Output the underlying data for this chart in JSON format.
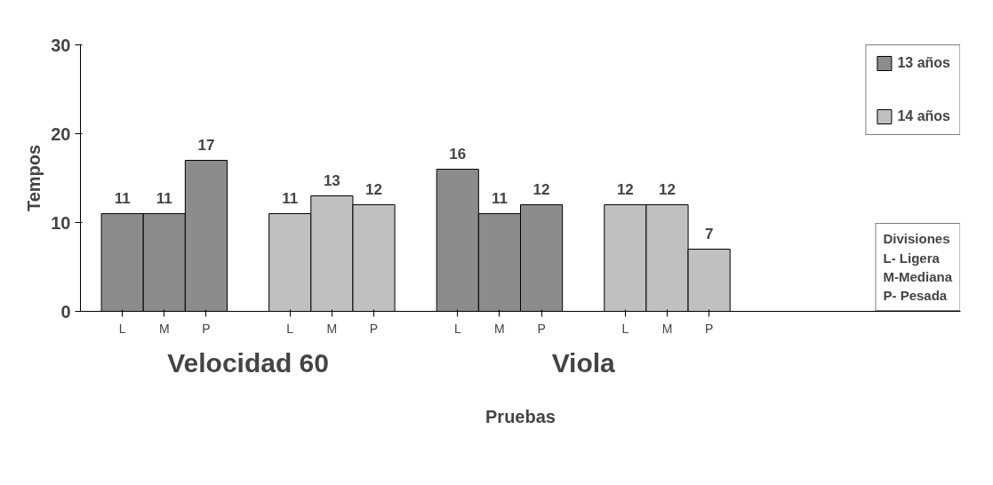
{
  "chart_data": {
    "type": "bar",
    "xlabel": "Pruebas",
    "ylabel": "Tempos",
    "categories": [
      "L",
      "M",
      "P",
      "L",
      "M",
      "P",
      "L",
      "M",
      "P",
      "L",
      "M",
      "P"
    ],
    "series": [
      {
        "name": "13 años",
        "color": "#8c8c8c",
        "values": [
          11,
          11,
          17,
          null,
          null,
          null,
          16,
          11,
          12,
          null,
          null,
          null
        ]
      },
      {
        "name": "14 años",
        "color": "#c0c0c0",
        "values": [
          null,
          null,
          null,
          11,
          13,
          12,
          null,
          null,
          null,
          12,
          12,
          7
        ]
      }
    ],
    "ylim": [
      0,
      30
    ],
    "yticks": [
      0,
      10,
      20,
      30
    ],
    "grid": false,
    "legend": "top right",
    "data_labels": true,
    "annotations": [
      "Velocidad 60",
      "Viola",
      "Divisiones\nL- Ligera\nM-Mediana\nP- Pesada"
    ]
  }
}
